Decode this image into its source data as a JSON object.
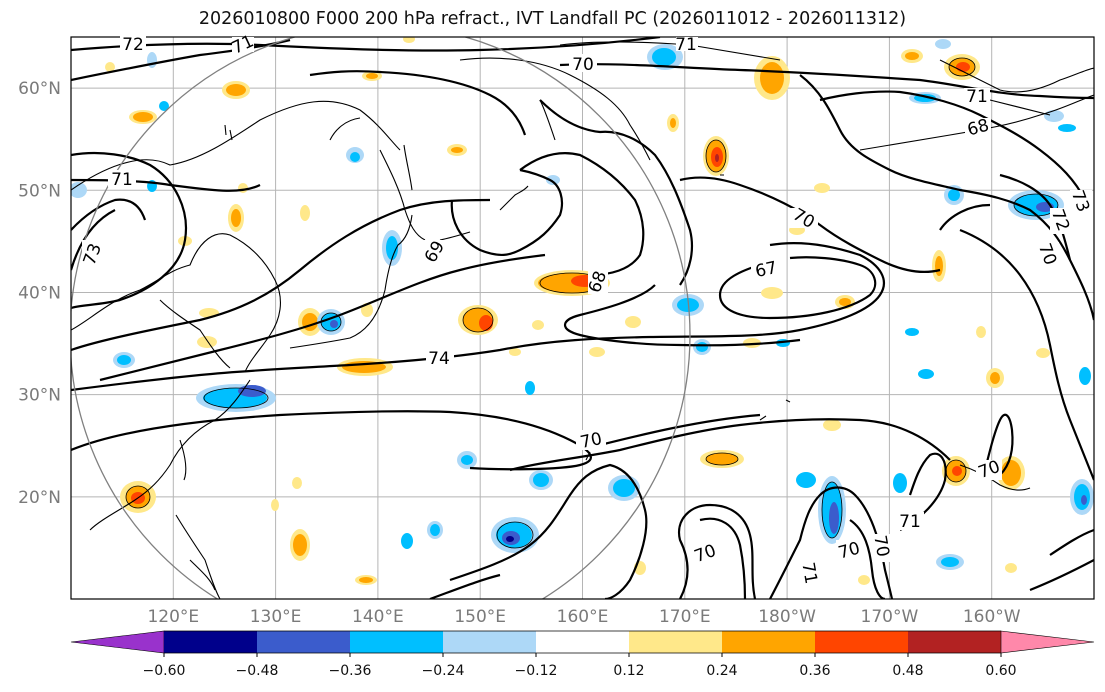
{
  "title": "2026010800 F000 200 hPa refract., IVT Landfall PC (2026011012 - 2026011312)",
  "map": {
    "projection": "PlateCarree",
    "lon_range": [
      110,
      210
    ],
    "lat_range": [
      10,
      65
    ],
    "lon_ticks": [
      "120°E",
      "130°E",
      "140°E",
      "150°E",
      "160°E",
      "170°E",
      "180°W",
      "170°W",
      "160°W"
    ],
    "lat_ticks": [
      "20°N",
      "30°N",
      "40°N",
      "50°N",
      "60°N"
    ],
    "gridlines": true,
    "range_circle": true
  },
  "contour_labels": [
    "72",
    "71",
    "70",
    "71",
    "71",
    "73",
    "71",
    "68",
    "69",
    "70",
    "68",
    "67",
    "74",
    "73",
    "72",
    "70",
    "70",
    "70",
    "71",
    "70",
    "70",
    "70",
    "71"
  ],
  "colorbar": {
    "colors": [
      "#9932cc",
      "#00008b",
      "#3b5ccc",
      "#00bfff",
      "#add8f7",
      "#ffffff",
      "#ffe88a",
      "#ffa500",
      "#ff4500",
      "#b22222",
      "#ff88aa"
    ],
    "tick_labels": [
      "−0.60",
      "−0.48",
      "−0.36",
      "−0.24",
      "−0.12",
      "0.12",
      "0.24",
      "0.36",
      "0.48",
      "0.60"
    ],
    "extend": "both"
  }
}
